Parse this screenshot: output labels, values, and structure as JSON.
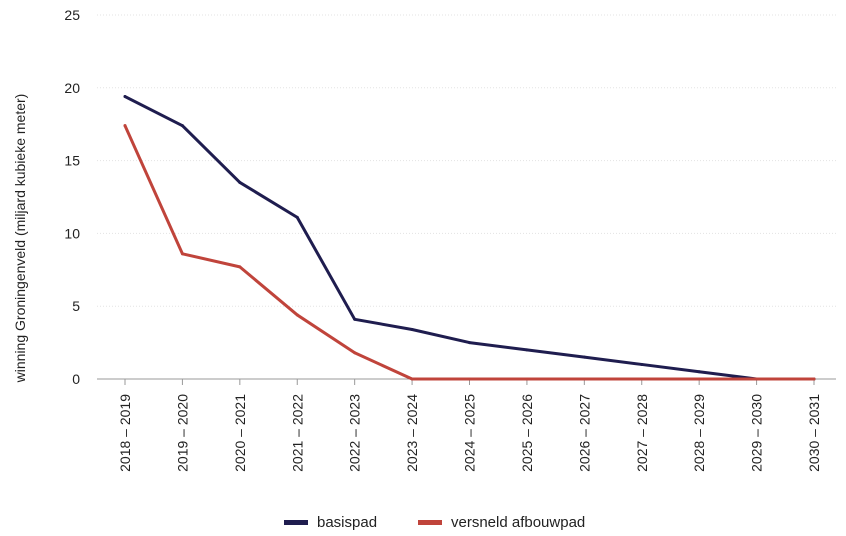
{
  "chart_data": {
    "type": "line",
    "categories": [
      "2018 – 2019",
      "2019 – 2020",
      "2020 – 2021",
      "2021 – 2022",
      "2022 – 2023",
      "2023 – 2024",
      "2024 – 2025",
      "2025 – 2026",
      "2026 – 2027",
      "2027 – 2028",
      "2028 – 2029",
      "2029 – 2030",
      "2030 – 2031"
    ],
    "series": [
      {
        "name": "basispad",
        "color": "#1f1d4f",
        "values": [
          19.4,
          17.4,
          13.5,
          11.1,
          4.1,
          3.4,
          2.5,
          2.0,
          1.5,
          1.0,
          0.5,
          0.0,
          0.0
        ]
      },
      {
        "name": "versneld afbouwpad",
        "color": "#c0443b",
        "values": [
          17.4,
          8.6,
          7.7,
          4.4,
          1.8,
          0.0,
          0.0,
          0.0,
          0.0,
          0.0,
          0.0,
          0.0,
          0.0
        ]
      }
    ],
    "title": "",
    "xlabel": "",
    "ylabel": "winning Groningenveld (miljard kubieke meter)",
    "ylim": [
      0,
      25
    ],
    "yticks": [
      0,
      5,
      10,
      15,
      20,
      25
    ],
    "grid": true,
    "legend": "bottom"
  }
}
